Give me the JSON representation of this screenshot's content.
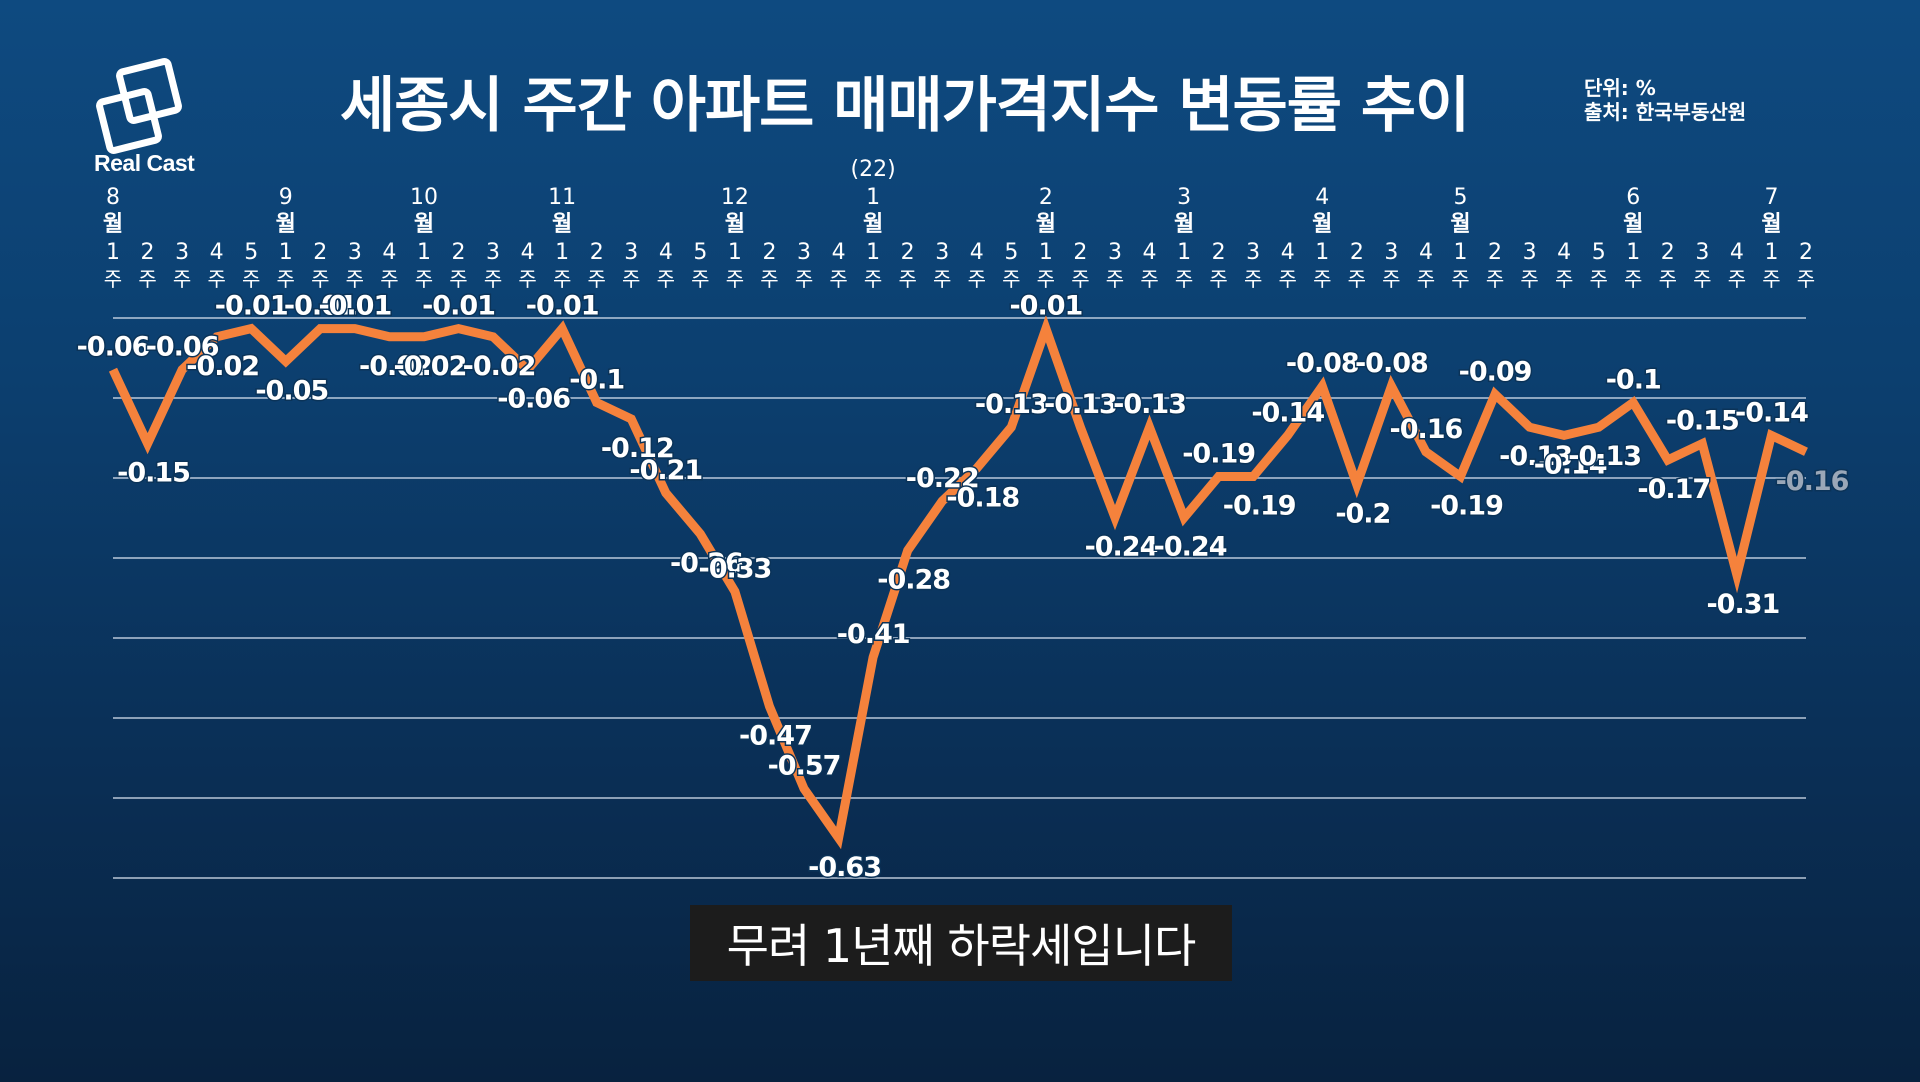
{
  "header": {
    "logo_text": "Real Cast",
    "title": "세종시 주간 아파트 매매가격지수 변동률 추이",
    "unit": "단위: %",
    "source": "출처: 한국부동산원"
  },
  "caption": "무려 1년째 하락세입니다",
  "colors": {
    "line": "#f5823c",
    "text": "#ffffff",
    "last_label": "#9aa7b8",
    "grid": "#d8e2ee"
  },
  "chart_data": {
    "type": "line",
    "title": "세종시 주간 아파트 매매가격지수 변동률 추이",
    "xlabel": "",
    "ylabel": "",
    "ylim": [
      -0.65,
      0.02
    ],
    "grid": true,
    "year_marker": {
      "label": "(22)",
      "month": "1월"
    },
    "months": [
      {
        "month": "8",
        "suffix": "월",
        "weeks": [
          "1",
          "2",
          "3",
          "4",
          "5"
        ]
      },
      {
        "month": "9",
        "suffix": "월",
        "weeks": [
          "1",
          "2",
          "3",
          "4"
        ]
      },
      {
        "month": "10",
        "suffix": "월",
        "weeks": [
          "1",
          "2",
          "3",
          "4"
        ]
      },
      {
        "month": "11",
        "suffix": "월",
        "weeks": [
          "1",
          "2",
          "3",
          "4",
          "5"
        ]
      },
      {
        "month": "12",
        "suffix": "월",
        "weeks": [
          "1",
          "2",
          "3",
          "4"
        ]
      },
      {
        "month": "1",
        "suffix": "월",
        "weeks": [
          "1",
          "2",
          "3",
          "4",
          "5"
        ]
      },
      {
        "month": "2",
        "suffix": "월",
        "weeks": [
          "1",
          "2",
          "3",
          "4"
        ]
      },
      {
        "month": "3",
        "suffix": "월",
        "weeks": [
          "1",
          "2",
          "3",
          "4"
        ]
      },
      {
        "month": "4",
        "suffix": "월",
        "weeks": [
          "1",
          "2",
          "3",
          "4"
        ]
      },
      {
        "month": "5",
        "suffix": "월",
        "weeks": [
          "1",
          "2",
          "3",
          "4",
          "5"
        ]
      },
      {
        "month": "6",
        "suffix": "월",
        "weeks": [
          "1",
          "2",
          "3",
          "4"
        ]
      },
      {
        "month": "7",
        "suffix": "월",
        "weeks": [
          "1",
          "2"
        ]
      }
    ],
    "week_suffix": "주",
    "series": [
      {
        "values": [
          -0.06,
          -0.15,
          -0.06,
          -0.02,
          -0.01,
          -0.05,
          -0.01,
          -0.01,
          -0.02,
          -0.02,
          -0.01,
          -0.02,
          -0.06,
          -0.01,
          -0.1,
          -0.12,
          -0.21,
          -0.26,
          -0.33,
          -0.47,
          -0.57,
          -0.63,
          -0.41,
          -0.28,
          -0.22,
          -0.18,
          -0.13,
          -0.01,
          -0.13,
          -0.24,
          -0.13,
          -0.24,
          -0.19,
          -0.19,
          -0.14,
          -0.08,
          -0.2,
          -0.08,
          -0.16,
          -0.19,
          -0.09,
          -0.13,
          -0.14,
          -0.13,
          -0.1,
          -0.17,
          -0.15,
          -0.31,
          -0.14,
          -0.16
        ],
        "labels": [
          "-0.06",
          "-0.15",
          "-0.06",
          "-0.02",
          "-0.01",
          "-0.05",
          "-0.01",
          "-0.01",
          "-0.02",
          "-0.02",
          "-0.01",
          "-0.02",
          "-0.06",
          "-0.01",
          "-0.1",
          "-0.12",
          "-0.21",
          "-0.26",
          "-0.33",
          "-0.47",
          "-0.57",
          "-0.63",
          "-0.41",
          "-0.28",
          "-0.22",
          "-0.18",
          "-0.13",
          "-0.01",
          "-0.13",
          "-0.24",
          "-0.13",
          "-0.24",
          "-0.19",
          "-0.19",
          "-0.14",
          "-0.08",
          "-0.2",
          "-0.08",
          "-0.16",
          "-0.19",
          "-0.09",
          "-0.13",
          "-0.14",
          "-0.13",
          "-0.1",
          "-0.17",
          "-0.15",
          "-0.31",
          "-0.14",
          "-0.16"
        ]
      }
    ]
  }
}
